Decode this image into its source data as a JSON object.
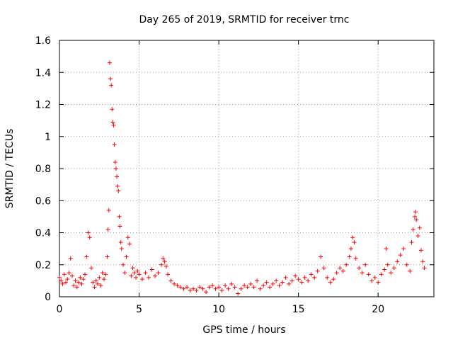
{
  "chart_data": {
    "type": "scatter",
    "title": "Day 265 of 2019, SRMTID for receiver trnc",
    "xlabel": "GPS time / hours",
    "ylabel": "SRMTID / TECUs",
    "xlim": [
      0,
      23.5
    ],
    "ylim": [
      0,
      1.6
    ],
    "xticks": [
      0,
      5,
      10,
      15,
      20
    ],
    "xtick_labels": [
      "0",
      "5",
      "10",
      "15",
      "20"
    ],
    "yticks": [
      0,
      0.2,
      0.4,
      0.6,
      0.8,
      1.0,
      1.2,
      1.4,
      1.6
    ],
    "ytick_labels": [
      "0",
      "0.2",
      "0.4",
      "0.6",
      "0.8",
      "1",
      "1.2",
      "1.4",
      "1.6"
    ],
    "grid": true,
    "marker": "+",
    "colors": {
      "marker": "#ff0000",
      "grid": "#a0a0a0",
      "axis": "#000000"
    },
    "series": [
      {
        "name": "SRMTID",
        "points": [
          [
            0.0,
            0.12
          ],
          [
            0.1,
            0.1
          ],
          [
            0.2,
            0.08
          ],
          [
            0.3,
            0.14
          ],
          [
            0.4,
            0.09
          ],
          [
            0.5,
            0.11
          ],
          [
            0.6,
            0.15
          ],
          [
            0.7,
            0.24
          ],
          [
            0.8,
            0.13
          ],
          [
            0.9,
            0.07
          ],
          [
            1.0,
            0.1
          ],
          [
            1.1,
            0.06
          ],
          [
            1.2,
            0.09
          ],
          [
            1.3,
            0.12
          ],
          [
            1.4,
            0.08
          ],
          [
            1.5,
            0.11
          ],
          [
            1.6,
            0.14
          ],
          [
            1.7,
            0.25
          ],
          [
            1.8,
            0.4
          ],
          [
            1.9,
            0.37
          ],
          [
            2.0,
            0.18
          ],
          [
            2.1,
            0.09
          ],
          [
            2.2,
            0.06
          ],
          [
            2.3,
            0.1
          ],
          [
            2.4,
            0.08
          ],
          [
            2.5,
            0.12
          ],
          [
            2.6,
            0.07
          ],
          [
            2.7,
            0.15
          ],
          [
            2.8,
            0.11
          ],
          [
            2.9,
            0.14
          ],
          [
            3.0,
            0.25
          ],
          [
            3.05,
            0.42
          ],
          [
            3.1,
            0.54
          ],
          [
            3.15,
            1.46
          ],
          [
            3.2,
            1.36
          ],
          [
            3.25,
            1.32
          ],
          [
            3.3,
            1.17
          ],
          [
            3.35,
            1.09
          ],
          [
            3.4,
            1.07
          ],
          [
            3.45,
            0.95
          ],
          [
            3.5,
            0.84
          ],
          [
            3.55,
            0.8
          ],
          [
            3.6,
            0.75
          ],
          [
            3.65,
            0.69
          ],
          [
            3.7,
            0.66
          ],
          [
            3.75,
            0.5
          ],
          [
            3.8,
            0.44
          ],
          [
            3.85,
            0.34
          ],
          [
            3.9,
            0.3
          ],
          [
            4.0,
            0.2
          ],
          [
            4.1,
            0.15
          ],
          [
            4.2,
            0.25
          ],
          [
            4.3,
            0.37
          ],
          [
            4.4,
            0.33
          ],
          [
            4.5,
            0.13
          ],
          [
            4.6,
            0.18
          ],
          [
            4.7,
            0.15
          ],
          [
            4.8,
            0.12
          ],
          [
            4.9,
            0.16
          ],
          [
            5.0,
            0.14
          ],
          [
            5.2,
            0.11
          ],
          [
            5.4,
            0.15
          ],
          [
            5.6,
            0.12
          ],
          [
            5.8,
            0.17
          ],
          [
            6.0,
            0.13
          ],
          [
            6.2,
            0.15
          ],
          [
            6.4,
            0.2
          ],
          [
            6.5,
            0.24
          ],
          [
            6.6,
            0.22
          ],
          [
            6.7,
            0.19
          ],
          [
            6.8,
            0.14
          ],
          [
            7.0,
            0.1
          ],
          [
            7.2,
            0.08
          ],
          [
            7.4,
            0.07
          ],
          [
            7.6,
            0.06
          ],
          [
            7.8,
            0.05
          ],
          [
            8.0,
            0.06
          ],
          [
            8.2,
            0.04
          ],
          [
            8.4,
            0.05
          ],
          [
            8.6,
            0.04
          ],
          [
            8.8,
            0.06
          ],
          [
            9.0,
            0.05
          ],
          [
            9.2,
            0.03
          ],
          [
            9.4,
            0.06
          ],
          [
            9.6,
            0.07
          ],
          [
            9.8,
            0.05
          ],
          [
            10.0,
            0.06
          ],
          [
            10.2,
            0.04
          ],
          [
            10.4,
            0.07
          ],
          [
            10.6,
            0.05
          ],
          [
            10.8,
            0.08
          ],
          [
            11.0,
            0.06
          ],
          [
            11.2,
            0.02
          ],
          [
            11.4,
            0.05
          ],
          [
            11.6,
            0.07
          ],
          [
            11.8,
            0.06
          ],
          [
            12.0,
            0.08
          ],
          [
            12.2,
            0.06
          ],
          [
            12.4,
            0.1
          ],
          [
            12.6,
            0.05
          ],
          [
            12.8,
            0.07
          ],
          [
            13.0,
            0.09
          ],
          [
            13.2,
            0.06
          ],
          [
            13.4,
            0.08
          ],
          [
            13.6,
            0.1
          ],
          [
            13.8,
            0.07
          ],
          [
            14.0,
            0.09
          ],
          [
            14.2,
            0.12
          ],
          [
            14.4,
            0.08
          ],
          [
            14.6,
            0.1
          ],
          [
            14.8,
            0.13
          ],
          [
            15.0,
            0.11
          ],
          [
            15.2,
            0.09
          ],
          [
            15.4,
            0.12
          ],
          [
            15.6,
            0.1
          ],
          [
            15.8,
            0.14
          ],
          [
            16.0,
            0.12
          ],
          [
            16.2,
            0.16
          ],
          [
            16.4,
            0.25
          ],
          [
            16.6,
            0.18
          ],
          [
            16.8,
            0.12
          ],
          [
            17.0,
            0.09
          ],
          [
            17.2,
            0.11
          ],
          [
            17.4,
            0.15
          ],
          [
            17.6,
            0.18
          ],
          [
            17.8,
            0.16
          ],
          [
            18.0,
            0.2
          ],
          [
            18.2,
            0.25
          ],
          [
            18.3,
            0.3
          ],
          [
            18.4,
            0.37
          ],
          [
            18.5,
            0.34
          ],
          [
            18.6,
            0.24
          ],
          [
            18.8,
            0.18
          ],
          [
            19.0,
            0.15
          ],
          [
            19.2,
            0.2
          ],
          [
            19.4,
            0.14
          ],
          [
            19.6,
            0.1
          ],
          [
            19.8,
            0.12
          ],
          [
            20.0,
            0.09
          ],
          [
            20.2,
            0.14
          ],
          [
            20.4,
            0.17
          ],
          [
            20.5,
            0.3
          ],
          [
            20.6,
            0.2
          ],
          [
            20.8,
            0.15
          ],
          [
            21.0,
            0.18
          ],
          [
            21.2,
            0.22
          ],
          [
            21.4,
            0.26
          ],
          [
            21.6,
            0.3
          ],
          [
            21.8,
            0.2
          ],
          [
            22.0,
            0.16
          ],
          [
            22.1,
            0.34
          ],
          [
            22.2,
            0.42
          ],
          [
            22.3,
            0.5
          ],
          [
            22.35,
            0.53
          ],
          [
            22.4,
            0.48
          ],
          [
            22.5,
            0.38
          ],
          [
            22.6,
            0.43
          ],
          [
            22.7,
            0.29
          ],
          [
            22.8,
            0.22
          ],
          [
            22.9,
            0.18
          ]
        ]
      }
    ]
  }
}
